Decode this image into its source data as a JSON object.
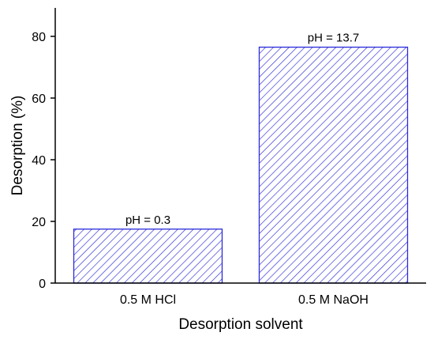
{
  "chart_data": {
    "type": "bar",
    "categories": [
      "0.5 M HCl",
      "0.5 M NaOH"
    ],
    "values": [
      17.5,
      76.5
    ],
    "data_labels": [
      "pH = 0.3",
      "pH = 13.7"
    ],
    "xlabel": "Desorption solvent",
    "ylabel": "Desorption (%)",
    "ylim": [
      0,
      90
    ],
    "yticks": [
      "0",
      "20",
      "40",
      "60",
      "80"
    ],
    "ytick_values": [
      0,
      20,
      40,
      60,
      80
    ],
    "grid": false,
    "bar_fill": "hatched",
    "colors": {
      "bar_edge": "#2b2bd9",
      "hatch": "#2b2bd9",
      "axis": "#000000"
    }
  }
}
